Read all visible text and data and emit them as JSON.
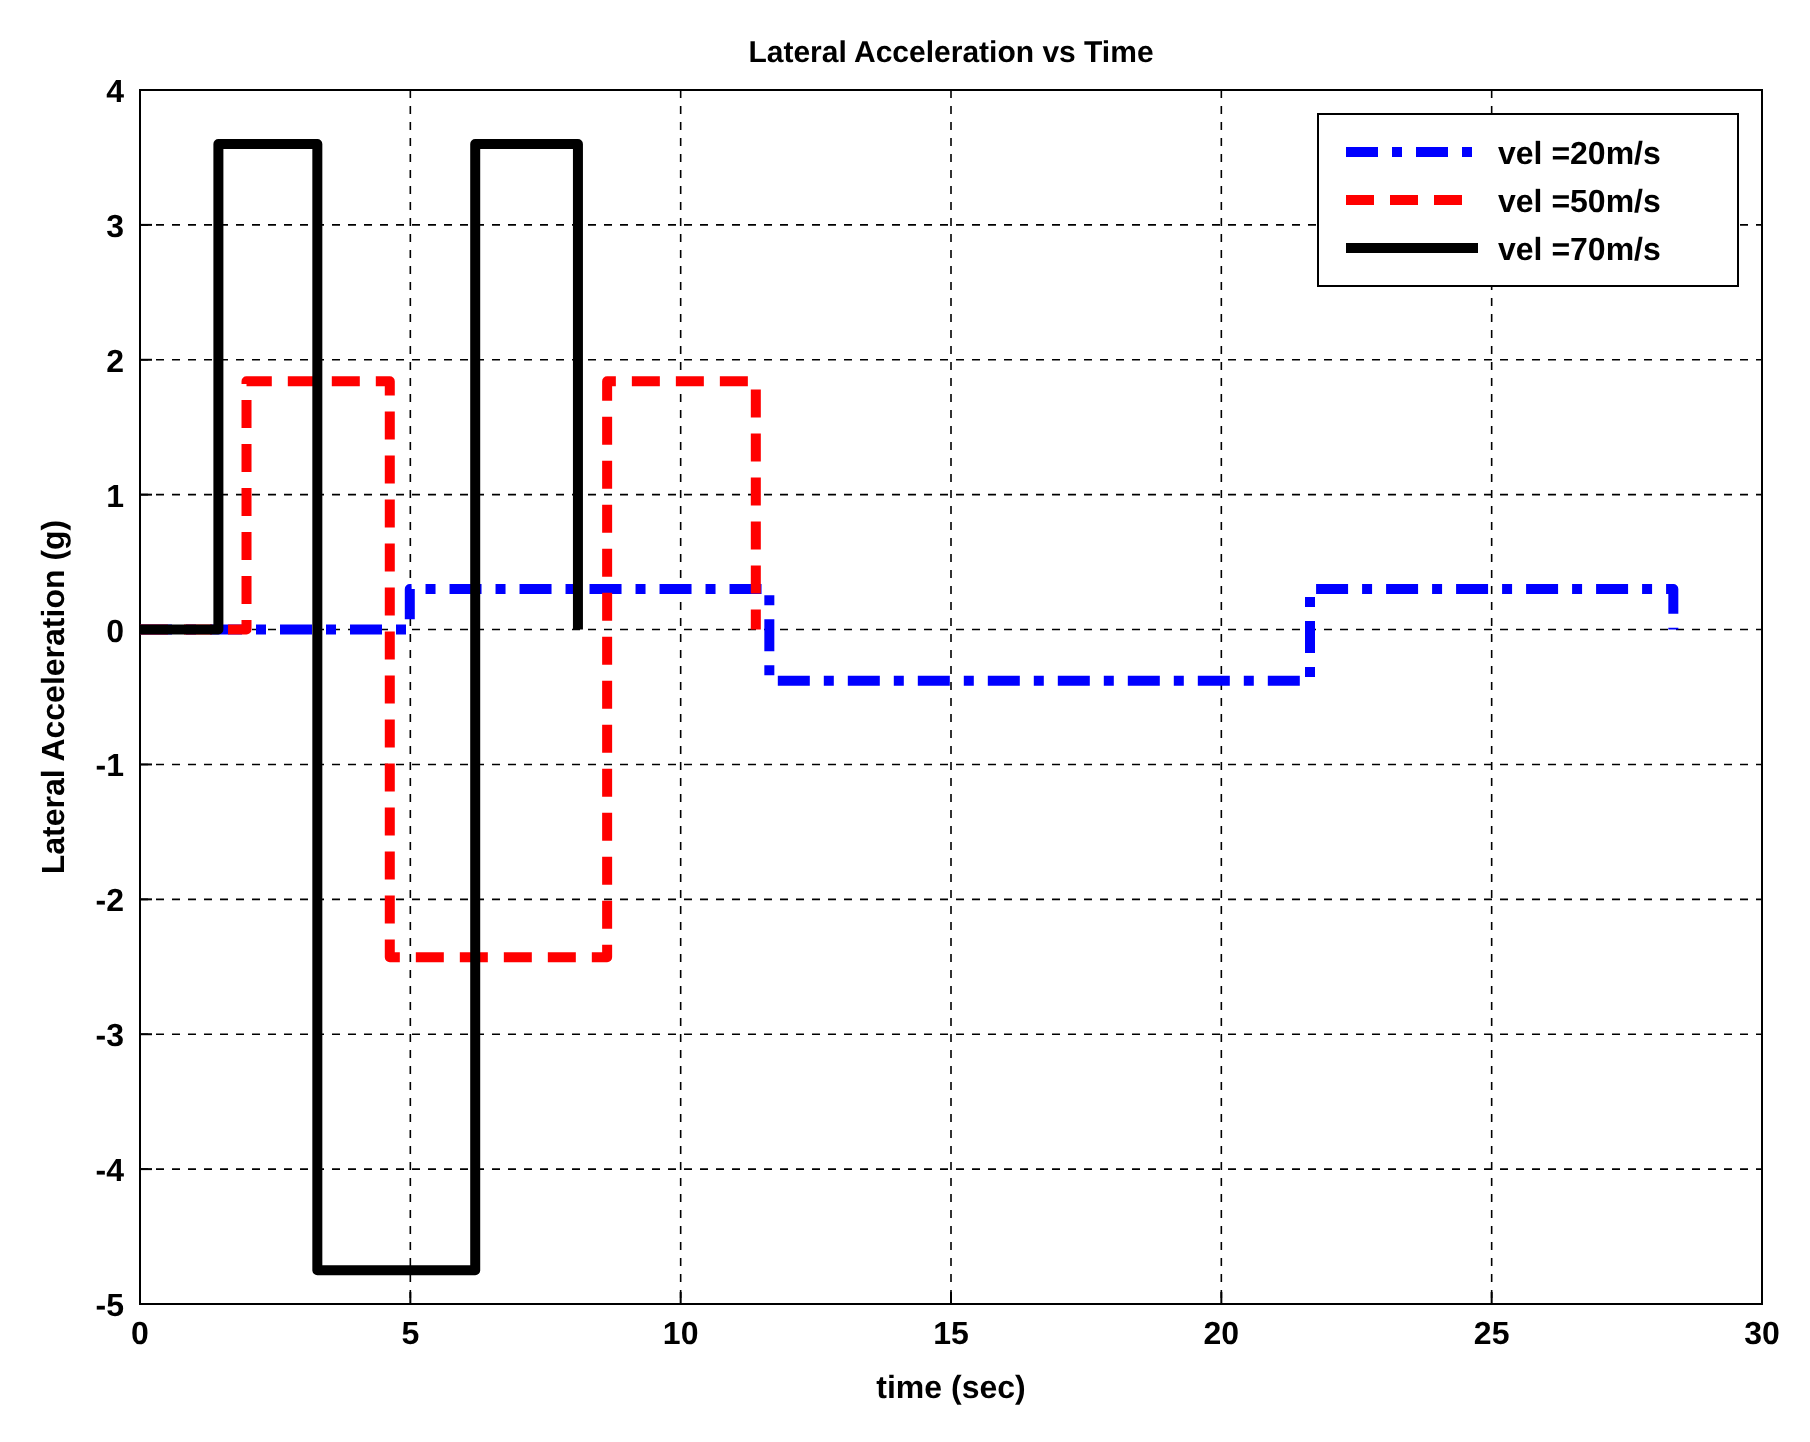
{
  "chart_data": {
    "type": "step",
    "title": "Lateral Acceleration vs Time",
    "xlabel": "time (sec)",
    "ylabel": "Lateral Acceleration (g)",
    "xlim": [
      0,
      30
    ],
    "xticks": [
      0,
      5,
      10,
      15,
      20,
      25,
      30
    ],
    "ylim": [
      -5,
      4
    ],
    "yticks": [
      -5,
      -4,
      -3,
      -2,
      -1,
      0,
      1,
      2,
      3,
      4
    ],
    "grid": true,
    "legend": "top right",
    "series": [
      {
        "name": "vel =20m/s",
        "color": "#0000ff",
        "line_style": "dashdot",
        "x": [
          0,
          4.99,
          11.64,
          21.64,
          28.36
        ],
        "values": [
          0,
          0.3,
          -0.38,
          0.3,
          0
        ]
      },
      {
        "name": "vel =50m/s",
        "color": "#ff0000",
        "line_style": "dashed",
        "x": [
          0,
          1.97,
          4.62,
          8.64,
          11.39
        ],
        "values": [
          0,
          1.84,
          -2.43,
          1.84,
          0
        ]
      },
      {
        "name": "vel =70m/s",
        "color": "#000000",
        "line_style": "solid",
        "x": [
          0,
          1.45,
          3.28,
          6.2,
          8.1
        ],
        "values": [
          0,
          3.6,
          -4.75,
          3.6,
          0
        ]
      }
    ]
  }
}
